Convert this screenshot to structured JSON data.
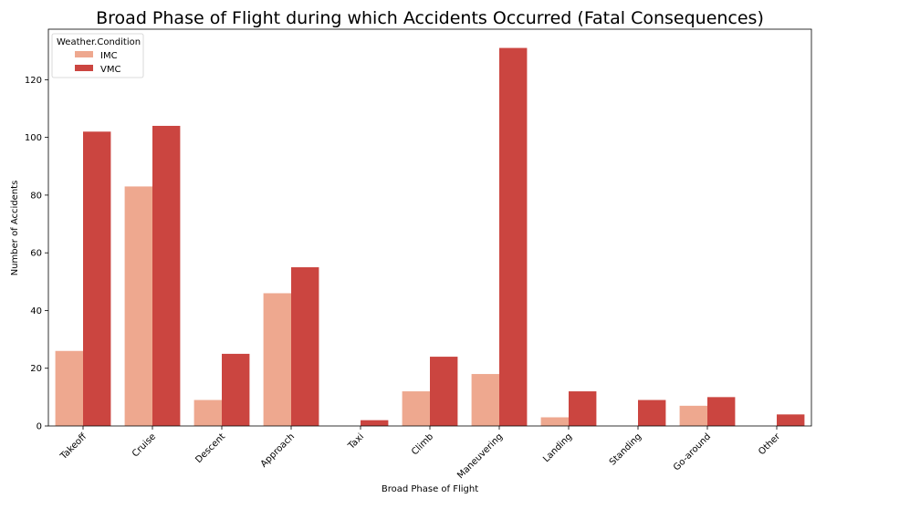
{
  "chart_data": {
    "type": "bar",
    "title": "Broad Phase of Flight during which Accidents Occurred (Fatal Consequences)",
    "xlabel": "Broad Phase of Flight",
    "ylabel": "Number of Accidents",
    "categories": [
      "Takeoff",
      "Cruise",
      "Descent",
      "Approach",
      "Taxi",
      "Climb",
      "Maneuvering",
      "Landing",
      "Standing",
      "Go-around",
      "Other"
    ],
    "series": [
      {
        "name": "IMC",
        "color": "#eea88f",
        "values": [
          26,
          83,
          9,
          46,
          0,
          12,
          18,
          3,
          0,
          7,
          0
        ]
      },
      {
        "name": "VMC",
        "color": "#cb4540",
        "values": [
          102,
          104,
          25,
          55,
          2,
          24,
          131,
          12,
          9,
          10,
          4
        ]
      }
    ],
    "ylim": [
      0,
      137.5
    ],
    "yticks": [
      0,
      20,
      40,
      60,
      80,
      100,
      120
    ],
    "grid": false,
    "legend": {
      "title": "Weather.Condition",
      "placement": "top-left"
    }
  }
}
